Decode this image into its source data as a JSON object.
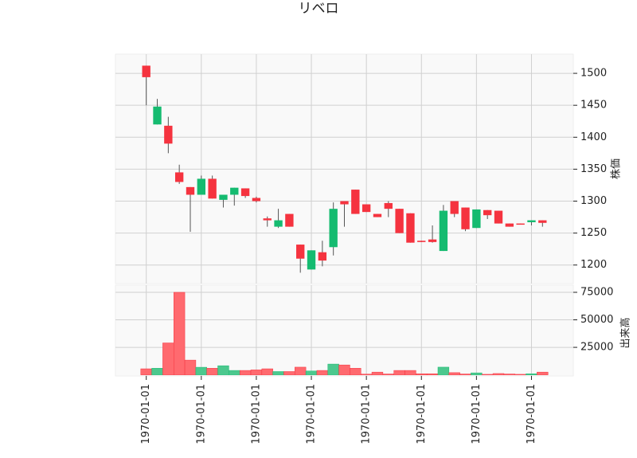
{
  "chart_data": {
    "type": "candlestick",
    "title": "リベロ",
    "x": [
      0,
      1,
      2,
      3,
      4,
      5,
      6,
      7,
      8,
      9,
      10,
      11,
      12,
      13,
      14,
      15,
      16,
      17,
      18,
      19,
      20,
      21,
      22,
      23,
      24,
      25,
      26,
      27,
      28,
      29,
      30,
      31,
      32,
      33,
      34,
      35,
      36
    ],
    "open": [
      1494,
      1448,
      1390,
      1330,
      1310,
      1335,
      1304,
      1310,
      1321,
      1308,
      1300,
      1270,
      1270,
      1260,
      1210,
      1223,
      1207,
      1288,
      1295,
      1280,
      1283,
      1275,
      1288,
      1250,
      1235,
      1236,
      1236,
      1285,
      1280,
      1256,
      1287,
      1278,
      1265,
      1260,
      1264,
      1270,
      1266
    ],
    "high": [
      1512,
      1460,
      1432,
      1357,
      1322,
      1340,
      1340,
      1310,
      1321,
      1320,
      1307,
      1276,
      1288,
      1280,
      1232,
      1223,
      1238,
      1298,
      1300,
      1318,
      1295,
      1280,
      1300,
      1288,
      1281,
      1238,
      1262,
      1294,
      1300,
      1290,
      1287,
      1286,
      1285,
      1265,
      1265,
      1270,
      1270
    ],
    "low": [
      1450,
      1420,
      1375,
      1327,
      1252,
      1310,
      1304,
      1290,
      1293,
      1305,
      1298,
      1260,
      1258,
      1260,
      1188,
      1193,
      1198,
      1215,
      1260,
      1280,
      1283,
      1275,
      1275,
      1250,
      1235,
      1236,
      1235,
      1222,
      1275,
      1253,
      1258,
      1272,
      1265,
      1260,
      1264,
      1262,
      1260
    ],
    "close": [
      1512,
      1420,
      1418,
      1345,
      1322,
      1310,
      1335,
      1302,
      1310,
      1320,
      1305,
      1273,
      1260,
      1280,
      1232,
      1193,
      1220,
      1228,
      1300,
      1318,
      1295,
      1280,
      1297,
      1288,
      1281,
      1238,
      1240,
      1222,
      1300,
      1290,
      1258,
      1286,
      1285,
      1265,
      1265,
      1267,
      1270
    ],
    "volume": [
      5500,
      6000,
      29000,
      75000,
      13400,
      6900,
      6000,
      8300,
      4000,
      4000,
      4500,
      5500,
      3000,
      3000,
      7000,
      3500,
      4000,
      9800,
      9000,
      6000,
      700,
      2500,
      800,
      4000,
      4000,
      1000,
      1000,
      7000,
      2000,
      800,
      1800,
      500,
      1200,
      800,
      500,
      1000,
      2500
    ],
    "up_color": "#f5333f",
    "down_color": "#15bb70",
    "up_volume_color": "#ff6a6f",
    "down_volume_color": "#4cc88e",
    "xlim": [
      -2.8,
      38.8
    ],
    "xticks": [
      {
        "value": 0,
        "label": "1970-01-01"
      },
      {
        "value": 5,
        "label": "1970-01-01"
      },
      {
        "value": 10,
        "label": "1970-01-01"
      },
      {
        "value": 15,
        "label": "1970-01-01"
      },
      {
        "value": 20,
        "label": "1970-01-01"
      },
      {
        "value": 25,
        "label": "1970-01-01"
      },
      {
        "value": 30,
        "label": "1970-01-01"
      },
      {
        "value": 35,
        "label": "1970-01-01"
      }
    ],
    "ylim": [
      1171,
      1530
    ],
    "yticks": [
      1200,
      1250,
      1300,
      1350,
      1400,
      1450,
      1500
    ],
    "ylabel": "株価",
    "volume_ylim": [
      -1000,
      81500
    ],
    "volume_yticks": [
      25000,
      50000,
      75000
    ],
    "volume_ylabel": "出来高",
    "grid": true
  }
}
